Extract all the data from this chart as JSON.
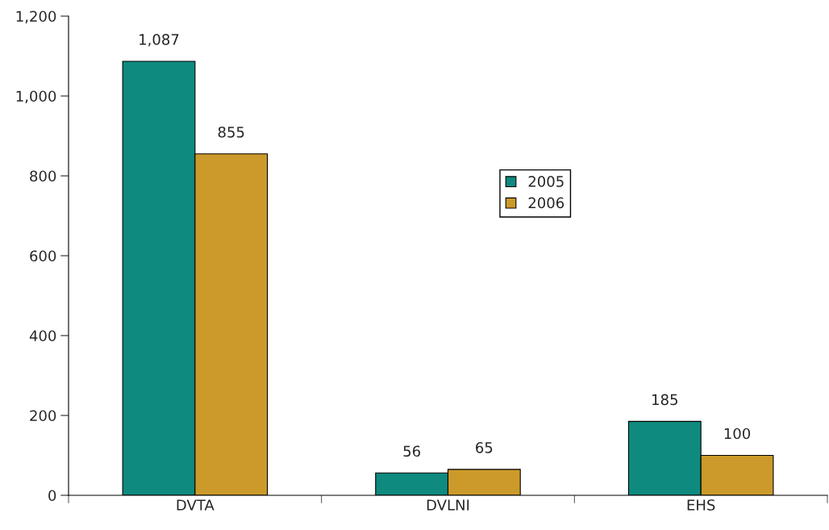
{
  "chart_data": {
    "type": "bar",
    "categories": [
      "DVTA",
      "DVLNI",
      "EHS"
    ],
    "series": [
      {
        "name": "2005",
        "color": "#0e8a7e",
        "values": [
          1087,
          56,
          185
        ],
        "value_labels": [
          "1,087",
          "56",
          "185"
        ]
      },
      {
        "name": "2006",
        "color": "#cc9a2a",
        "values": [
          855,
          65,
          100
        ],
        "value_labels": [
          "855",
          "65",
          "100"
        ]
      }
    ],
    "ylim": [
      0,
      1200
    ],
    "yticks": [
      0,
      200,
      400,
      600,
      800,
      {
        "value": 1000,
        "label": "1,000"
      },
      {
        "value": 1200,
        "label": "1,200"
      }
    ],
    "grid": false,
    "legend": "center"
  }
}
